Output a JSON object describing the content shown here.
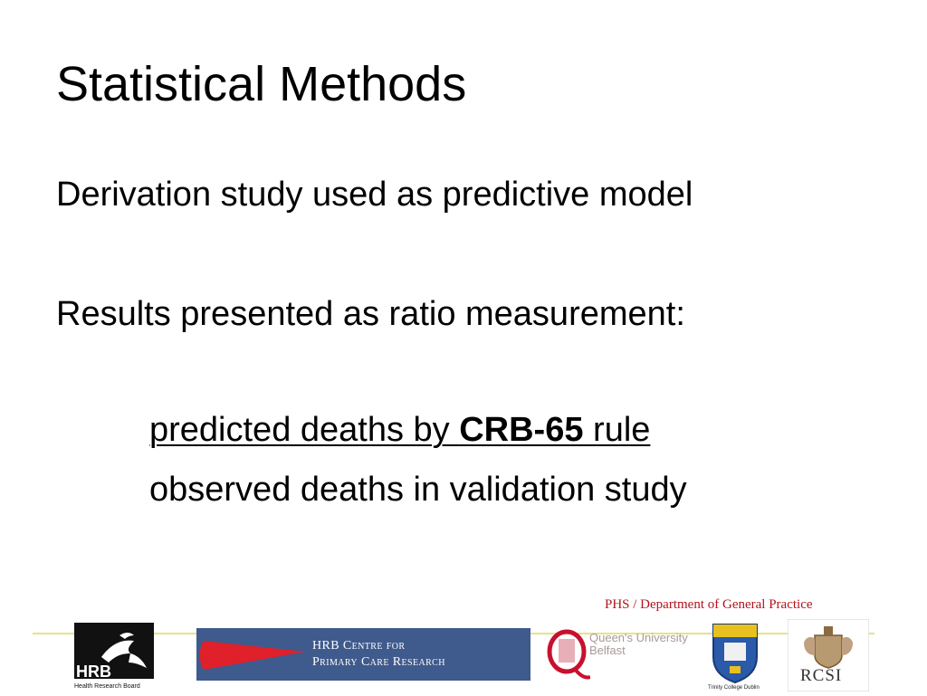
{
  "slide": {
    "title": "Statistical Methods",
    "line1": "Derivation study used as predictive model",
    "line2": "Results presented as ratio measurement:",
    "numerator_pre": "predicted deaths by ",
    "numerator_bold": "CRB-65",
    "numerator_post": " rule",
    "denominator": "observed deaths in validation study"
  },
  "footer": {
    "department": "PHS / Department of General Practice",
    "logos": {
      "hrb_mark": "HRB",
      "hrb_subtitle": "Health Research Board",
      "hrb_centre_line1": "HRB Centre for",
      "hrb_centre_line2": "Primary Care Research",
      "qub_line1": "Queen's University",
      "qub_line2": "Belfast",
      "tcd": "Trinity College Dublin",
      "rcsi": "RCSI"
    }
  },
  "colors": {
    "department_red": "#b5121b",
    "hrb_centre_blue": "#3f5a8c",
    "hrb_centre_red": "#e0202a",
    "qub_red": "#c8102e",
    "rule_yellow": "#e8e08a"
  }
}
